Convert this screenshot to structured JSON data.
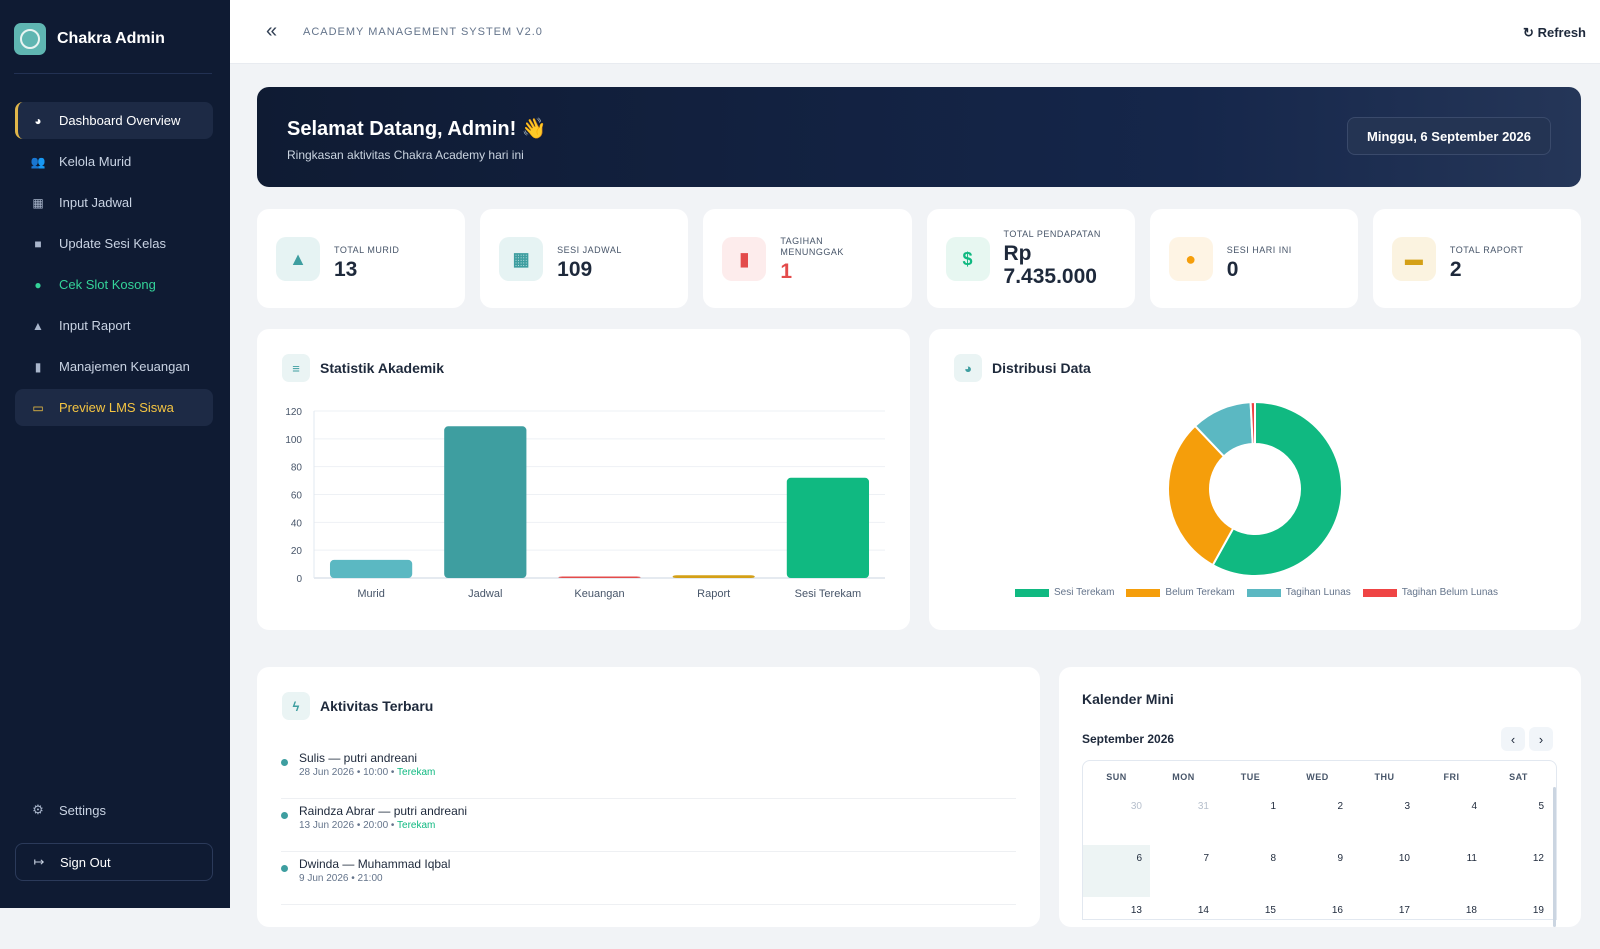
{
  "brand": {
    "name": "Chakra Admin"
  },
  "sidebar": {
    "items": [
      {
        "label": "Dashboard Overview",
        "icon": "pie-chart-icon"
      },
      {
        "label": "Kelola Murid",
        "icon": "users-icon"
      },
      {
        "label": "Input Jadwal",
        "icon": "calendar-icon"
      },
      {
        "label": "Update Sesi Kelas",
        "icon": "video-icon"
      },
      {
        "label": "Cek Slot Kosong",
        "icon": "clock-icon"
      },
      {
        "label": "Input Raport",
        "icon": "graduation-cap-icon"
      },
      {
        "label": "Manajemen Keuangan",
        "icon": "file-invoice-icon"
      },
      {
        "label": "Preview LMS Siswa",
        "icon": "monitor-icon"
      }
    ],
    "settings_label": "Settings",
    "signout_label": "Sign Out"
  },
  "topbar": {
    "system_name": "ACADEMY MANAGEMENT SYSTEM V2.0",
    "refresh_label": "Refresh"
  },
  "welcome": {
    "title": "Selamat Datang, Admin! 👋",
    "subtitle": "Ringkasan aktivitas Chakra Academy hari ini",
    "date": "Minggu, 6 September 2026"
  },
  "stats": [
    {
      "label": "TOTAL MURID",
      "value": "13",
      "icon": "graduation-cap-icon",
      "color": "#3e9ea0",
      "bg": "#e6f3f3"
    },
    {
      "label": "SESI JADWAL",
      "value": "109",
      "icon": "calendar-check-icon",
      "color": "#3e9ea0",
      "bg": "#e6f3f3"
    },
    {
      "label": "TAGIHAN MENUNGGAK",
      "value": "1",
      "icon": "invoice-icon",
      "color": "#e34b4b",
      "bg": "#fdecec"
    },
    {
      "label": "TOTAL PENDAPATAN",
      "value": "Rp 7.435.000",
      "icon": "dollar-icon",
      "color": "#10b981",
      "bg": "#e7f7f1"
    },
    {
      "label": "SESI HARI INI",
      "value": "0",
      "icon": "clock-icon",
      "color": "#f59e0b",
      "bg": "#fef4e4"
    },
    {
      "label": "TOTAL RAPORT",
      "value": "2",
      "icon": "scroll-icon",
      "color": "#d4a017",
      "bg": "#fbf3e0"
    }
  ],
  "panels": {
    "stat_title": "Statistik Akademik",
    "dist_title": "Distribusi Data",
    "activity_title": "Aktivitas Terbaru",
    "calendar_title": "Kalender Mini"
  },
  "chart_data": [
    {
      "type": "bar",
      "categories": [
        "Murid",
        "Jadwal",
        "Keuangan",
        "Raport",
        "Sesi Terekam"
      ],
      "values": [
        13,
        109,
        1,
        2,
        72
      ],
      "colors": [
        "#5bb8c2",
        "#3e9ea0",
        "#e34b4b",
        "#d4a017",
        "#10b981"
      ],
      "ylim": [
        0,
        120
      ],
      "yticks": [
        0,
        20,
        40,
        60,
        80,
        100,
        120
      ],
      "grid": true
    },
    {
      "type": "pie",
      "categories": [
        "Sesi Terekam",
        "Belum Terekam",
        "Tagihan Lunas",
        "Tagihan Belum Lunas"
      ],
      "values": [
        72,
        37,
        14,
        1
      ],
      "colors": [
        "#10b981",
        "#f59e0b",
        "#5bb8c2",
        "#ef4444"
      ],
      "legend": "bottom"
    }
  ],
  "activity": [
    {
      "title": "Sulis — putri andreani",
      "meta": "28 Jun 2026 • 10:00 • ",
      "status": "Terekam"
    },
    {
      "title": "Raindza Abrar — putri andreani",
      "meta": "13 Jun 2026 • 20:00 • ",
      "status": "Terekam"
    },
    {
      "title": "Dwinda — Muhammad Iqbal",
      "meta": "9 Jun 2026 • 21:00",
      "status": ""
    }
  ],
  "calendar": {
    "month": "September 2026",
    "days_of_week": [
      "SUN",
      "MON",
      "TUE",
      "WED",
      "THU",
      "FRI",
      "SAT"
    ],
    "rows": [
      [
        "30",
        "31",
        "1",
        "2",
        "3",
        "4",
        "5"
      ],
      [
        "6",
        "7",
        "8",
        "9",
        "10",
        "11",
        "12"
      ],
      [
        "13",
        "14",
        "15",
        "16",
        "17",
        "18",
        "19"
      ]
    ],
    "today": "6"
  }
}
